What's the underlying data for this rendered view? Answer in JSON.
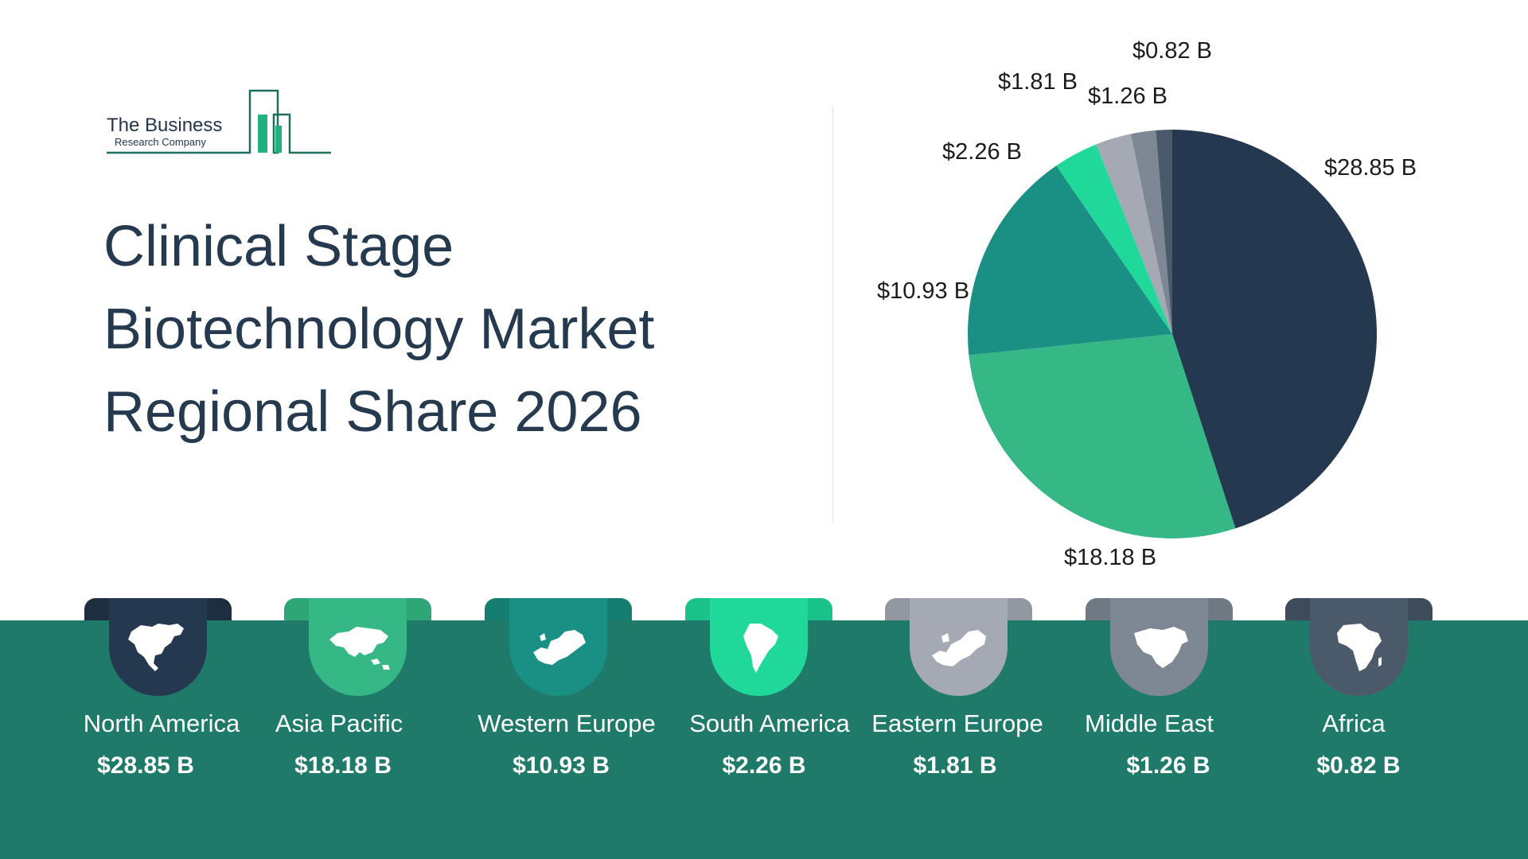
{
  "logo": {
    "name": "The Business",
    "sub": "Research Company"
  },
  "title_lines": [
    "Clinical Stage",
    "Biotechnology Market",
    "Regional Share 2026"
  ],
  "colors": {
    "band": "#207a6a",
    "title": "#25394f"
  },
  "chart_data": {
    "type": "pie",
    "unit": "$ B",
    "categories": [
      "North America",
      "Asia Pacific",
      "Western Europe",
      "South America",
      "Eastern Europe",
      "Middle East",
      "Africa"
    ],
    "values": [
      28.85,
      18.18,
      10.93,
      2.26,
      1.81,
      1.26,
      0.82
    ],
    "slice_labels": [
      "$28.85 B",
      "$18.18 B",
      "$10.93 B",
      "$2.26 B",
      "$1.81 B",
      "$1.26 B",
      "$0.82 B"
    ],
    "colors": [
      "#24384f",
      "#35b786",
      "#1a8f83",
      "#1fd89a",
      "#a5a9b3",
      "#7d8894",
      "#4b5a6b"
    ],
    "start_angle": "12 o'clock",
    "direction": "clockwise",
    "legend": "none"
  },
  "regions": [
    {
      "name": "North America",
      "value": "$28.85 B",
      "color": "#24384f",
      "icon": "north-america-map-icon"
    },
    {
      "name": "Asia Pacific",
      "value": "$18.18 B",
      "color": "#35b786",
      "icon": "asia-map-icon"
    },
    {
      "name": "Western Europe",
      "value": "$10.93 B",
      "color": "#1a8f83",
      "icon": "western-europe-map-icon"
    },
    {
      "name": "South America",
      "value": "$2.26 B",
      "color": "#1fd89a",
      "icon": "south-america-map-icon"
    },
    {
      "name": "Eastern Europe",
      "value": "$1.81 B",
      "color": "#a5a9b3",
      "icon": "eastern-europe-map-icon"
    },
    {
      "name": "Middle East",
      "value": "$1.26 B",
      "color": "#7d8894",
      "icon": "middle-east-map-icon"
    },
    {
      "name": "Africa",
      "value": "$0.82 B",
      "color": "#4b5a6b",
      "icon": "africa-map-icon"
    }
  ]
}
